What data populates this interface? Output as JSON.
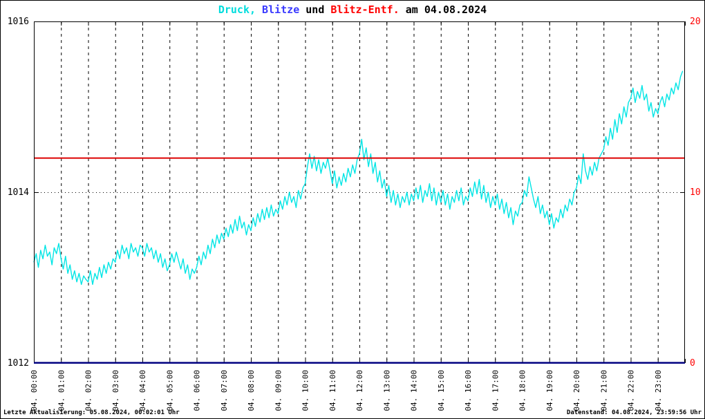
{
  "title": {
    "parts": [
      {
        "text": "Druck,",
        "color": "#00dddd"
      },
      {
        "text": " ",
        "color": "#000000"
      },
      {
        "text": "Blitze",
        "color": "#3a3aff"
      },
      {
        "text": " und ",
        "color": "#000000"
      },
      {
        "text": "Blitz-Entf.",
        "color": "#ff0000"
      },
      {
        "text": " am 04.08.2024",
        "color": "#000000"
      }
    ],
    "full_text": "Druck, Blitze und Blitz-Entf. am 04.08.2024"
  },
  "footer": {
    "left": "Letzte Aktualisierung: 05.08.2024, 00:02:01 Uhr",
    "right": "Datenstand: 04.08.2024, 23:59:56 Uhr"
  },
  "chart_data": {
    "type": "line",
    "title": "Druck, Blitze und Blitz-Entf. am 04.08.2024",
    "grid": {
      "vertical_dashed_each_hour": true,
      "horizontal_dotted_left_values": [
        1014
      ]
    },
    "x_axis": {
      "range_hours": [
        0,
        24
      ],
      "tick_labels": [
        "04. 00:00",
        "04. 01:00",
        "04. 02:00",
        "04. 03:00",
        "04. 04:00",
        "04. 05:00",
        "04. 06:00",
        "04. 07:00",
        "04. 08:00",
        "04. 09:00",
        "04. 10:00",
        "04. 11:00",
        "04. 12:00",
        "04. 13:00",
        "04. 14:00",
        "04. 15:00",
        "04. 16:00",
        "04. 17:00",
        "04. 18:00",
        "04. 19:00",
        "04. 20:00",
        "04. 21:00",
        "04. 22:00",
        "04. 23:00"
      ]
    },
    "y_left": {
      "range": [
        1012,
        1016
      ],
      "tick_values": [
        1012,
        1014,
        1016
      ],
      "tick_labels": [
        "1012",
        "1014",
        "1016"
      ],
      "color": "#000000"
    },
    "y_right": {
      "range": [
        0,
        20
      ],
      "tick_values": [
        0,
        10,
        20
      ],
      "tick_labels": [
        "0",
        "10",
        "20"
      ],
      "color": "#ff0000"
    },
    "series": [
      {
        "name": "Druck",
        "axis": "left",
        "color": "#00e5e5",
        "width": 1.4,
        "start_hour": 0,
        "sample_minutes": 5,
        "values": [
          1013.18,
          1013.28,
          1013.12,
          1013.32,
          1013.22,
          1013.38,
          1013.25,
          1013.3,
          1013.15,
          1013.35,
          1013.28,
          1013.4,
          1013.22,
          1013.1,
          1013.25,
          1013.05,
          1013.15,
          1012.98,
          1013.08,
          1012.95,
          1013.05,
          1012.92,
          1013.02,
          1012.98,
          1012.95,
          1013.08,
          1012.92,
          1013.05,
          1012.98,
          1013.12,
          1013.0,
          1013.15,
          1013.05,
          1013.18,
          1013.1,
          1013.22,
          1013.18,
          1013.32,
          1013.22,
          1013.38,
          1013.28,
          1013.35,
          1013.22,
          1013.4,
          1013.3,
          1013.35,
          1013.25,
          1013.38,
          1013.35,
          1013.25,
          1013.4,
          1013.3,
          1013.35,
          1013.22,
          1013.32,
          1013.18,
          1013.28,
          1013.12,
          1013.22,
          1013.08,
          1013.15,
          1013.28,
          1013.18,
          1013.3,
          1013.2,
          1013.1,
          1013.22,
          1013.05,
          1013.15,
          1012.98,
          1013.1,
          1013.05,
          1013.12,
          1013.25,
          1013.15,
          1013.3,
          1013.22,
          1013.38,
          1013.28,
          1013.45,
          1013.35,
          1013.5,
          1013.4,
          1013.52,
          1013.45,
          1013.58,
          1013.48,
          1013.62,
          1013.52,
          1013.68,
          1013.55,
          1013.72,
          1013.58,
          1013.65,
          1013.5,
          1013.62,
          1013.55,
          1013.7,
          1013.6,
          1013.75,
          1013.65,
          1013.8,
          1013.68,
          1013.82,
          1013.7,
          1013.85,
          1013.72,
          1013.8,
          1013.75,
          1013.9,
          1013.8,
          1013.95,
          1013.85,
          1014.0,
          1013.88,
          1013.95,
          1013.82,
          1014.02,
          1013.92,
          1014.05,
          1014.1,
          1014.3,
          1014.45,
          1014.28,
          1014.42,
          1014.25,
          1014.38,
          1014.22,
          1014.35,
          1014.28,
          1014.4,
          1014.25,
          1014.1,
          1014.25,
          1014.05,
          1014.18,
          1014.08,
          1014.22,
          1014.12,
          1014.28,
          1014.18,
          1014.32,
          1014.22,
          1014.38,
          1014.45,
          1014.62,
          1014.38,
          1014.52,
          1014.3,
          1014.45,
          1014.22,
          1014.35,
          1014.12,
          1014.25,
          1014.05,
          1014.15,
          1013.95,
          1014.08,
          1013.88,
          1014.02,
          1013.85,
          1013.98,
          1013.82,
          1013.95,
          1013.88,
          1014.0,
          1013.85,
          1013.98,
          1013.9,
          1014.05,
          1013.92,
          1014.08,
          1013.88,
          1014.02,
          1013.95,
          1014.1,
          1013.9,
          1014.05,
          1013.85,
          1014.0,
          1013.88,
          1014.02,
          1013.85,
          1013.98,
          1013.8,
          1013.95,
          1013.88,
          1014.02,
          1013.9,
          1014.05,
          1013.85,
          1013.95,
          1013.9,
          1014.05,
          1013.95,
          1014.12,
          1013.98,
          1014.15,
          1013.92,
          1014.08,
          1013.88,
          1014.0,
          1013.82,
          1013.95,
          1013.85,
          1013.98,
          1013.8,
          1013.92,
          1013.75,
          1013.88,
          1013.7,
          1013.82,
          1013.62,
          1013.78,
          1013.72,
          1013.85,
          1013.88,
          1014.02,
          1013.95,
          1014.18,
          1014.05,
          1013.92,
          1013.82,
          1013.95,
          1013.75,
          1013.85,
          1013.7,
          1013.78,
          1013.62,
          1013.75,
          1013.58,
          1013.7,
          1013.65,
          1013.8,
          1013.7,
          1013.85,
          1013.78,
          1013.92,
          1013.85,
          1014.0,
          1014.05,
          1014.2,
          1014.1,
          1014.45,
          1014.25,
          1014.15,
          1014.3,
          1014.2,
          1014.35,
          1014.25,
          1014.4,
          1014.45,
          1014.5,
          1014.65,
          1014.55,
          1014.75,
          1014.62,
          1014.85,
          1014.7,
          1014.92,
          1014.8,
          1015.0,
          1014.88,
          1015.05,
          1015.1,
          1015.22,
          1015.05,
          1015.18,
          1015.1,
          1015.25,
          1015.08,
          1015.15,
          1014.95,
          1015.05,
          1014.88,
          1014.98,
          1014.92,
          1015.05,
          1015.12,
          1015.0,
          1015.15,
          1015.08,
          1015.22,
          1015.15,
          1015.28,
          1015.2,
          1015.35,
          1015.42
        ]
      },
      {
        "name": "Blitz-Entf.",
        "axis": "right",
        "color": "#dd0000",
        "width": 2,
        "constant": 12
      },
      {
        "name": "Blitze",
        "axis": "right",
        "color": "#000080",
        "width": 2,
        "constant": 0
      }
    ]
  }
}
